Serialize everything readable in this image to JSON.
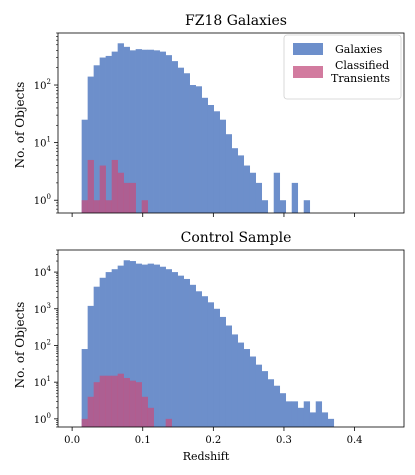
{
  "chart_data": [
    {
      "type": "bar",
      "title": "FZ18 Galaxies",
      "xlabel": "",
      "ylabel": "No. of Objects",
      "yscale": "log",
      "xlim": [
        -0.02,
        0.47
      ],
      "ylim": [
        0.6,
        800
      ],
      "x_ticks": [
        "",
        "",
        "",
        "",
        ""
      ],
      "y_ticks": [
        {
          "value": 1,
          "base": "10",
          "exp": "0"
        },
        {
          "value": 10,
          "base": "10",
          "exp": "1"
        },
        {
          "value": 100,
          "base": "10",
          "exp": "2"
        }
      ],
      "bin_start": 0.005,
      "bin_width": 0.0085,
      "legend": {
        "position": "top-right",
        "entries": [
          "Galaxies",
          "Classified Transients"
        ]
      },
      "series": [
        {
          "name": "Galaxies",
          "color": "#6d8fcb",
          "values": [
            0,
            25,
            140,
            220,
            300,
            320,
            380,
            530,
            460,
            400,
            420,
            410,
            410,
            400,
            380,
            330,
            260,
            200,
            160,
            100,
            95,
            60,
            45,
            35,
            25,
            14,
            8,
            6,
            4,
            3,
            2,
            1,
            0,
            3,
            1,
            0,
            2,
            0,
            1,
            0,
            0,
            0,
            0,
            0,
            0,
            0,
            0,
            0
          ]
        },
        {
          "name": "Classified Transients",
          "color": "#c34f7f",
          "values": [
            0,
            1,
            5,
            1,
            4,
            1,
            5,
            3,
            2,
            2,
            0,
            1,
            0,
            0,
            0,
            0,
            0,
            0,
            0,
            0,
            0,
            0,
            0,
            0,
            0,
            0,
            0,
            0,
            0,
            0,
            0,
            0,
            0,
            0,
            0,
            0,
            0,
            0,
            0,
            0,
            0,
            0,
            0,
            0,
            0,
            0,
            0,
            0
          ]
        }
      ]
    },
    {
      "type": "bar",
      "title": "Control Sample",
      "xlabel": "Redshift",
      "ylabel": "No. of Objects",
      "yscale": "log",
      "xlim": [
        -0.02,
        0.47
      ],
      "ylim": [
        0.6,
        40000
      ],
      "x_ticks": [
        "0.0",
        "0.1",
        "0.2",
        "0.3",
        "0.4"
      ],
      "y_ticks": [
        {
          "value": 1,
          "base": "10",
          "exp": "0"
        },
        {
          "value": 10,
          "base": "10",
          "exp": "1"
        },
        {
          "value": 100,
          "base": "10",
          "exp": "2"
        },
        {
          "value": 1000,
          "base": "10",
          "exp": "3"
        },
        {
          "value": 10000,
          "base": "10",
          "exp": "4"
        }
      ],
      "bin_start": 0.005,
      "bin_width": 0.0085,
      "series": [
        {
          "name": "Galaxies",
          "color": "#6d8fcb",
          "values": [
            0,
            80,
            1200,
            4000,
            7000,
            10000,
            12000,
            15000,
            21000,
            20000,
            17000,
            16000,
            17000,
            16000,
            14000,
            12000,
            10000,
            8000,
            6500,
            4500,
            3000,
            2200,
            1500,
            1000,
            600,
            350,
            200,
            120,
            80,
            50,
            30,
            20,
            12,
            8,
            5,
            3,
            3,
            2,
            3,
            1.5,
            3,
            1.5,
            1,
            0,
            0,
            0,
            0,
            0
          ]
        },
        {
          "name": "Classified Transients",
          "color": "#c34f7f",
          "values": [
            0,
            1,
            4,
            10,
            15,
            15,
            15,
            17,
            13,
            11,
            10,
            4,
            2,
            0,
            0,
            1,
            0,
            0,
            0,
            0,
            0,
            0,
            0,
            0,
            0,
            0,
            0,
            0,
            0,
            0,
            0,
            0,
            0,
            0,
            0,
            0,
            0,
            0,
            0,
            0,
            0,
            0,
            0,
            0,
            0,
            0,
            0,
            0
          ]
        }
      ]
    }
  ]
}
